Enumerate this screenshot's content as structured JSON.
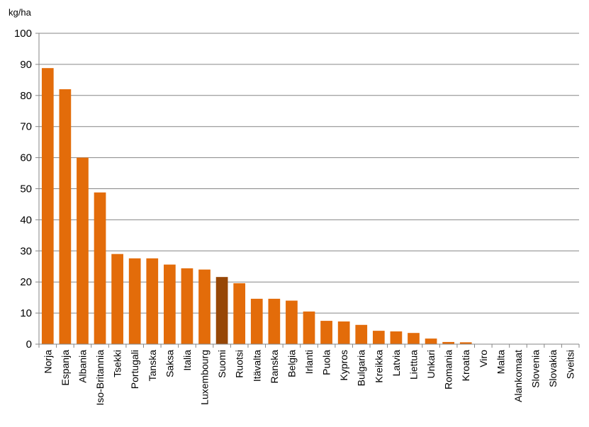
{
  "chart_data": {
    "type": "bar",
    "ylabel": "kg/ha",
    "ylim": [
      0,
      100
    ],
    "yticks": [
      0,
      10,
      20,
      30,
      40,
      50,
      60,
      70,
      80,
      90,
      100
    ],
    "grid": true,
    "categories": [
      "Norja",
      "Espanja",
      "Albania",
      "Iso-Britannia",
      "Tsekki",
      "Portugali",
      "Tanska",
      "Saksa",
      "Italia",
      "Luxembourg",
      "Suomi",
      "Ruotsi",
      "Itävalta",
      "Ranska",
      "Belgia",
      "Irlanti",
      "Puola",
      "Kypros",
      "Bulgaria",
      "Kreikka",
      "Latvia",
      "Liettua",
      "Unkari",
      "Romania",
      "Kroatia",
      "Viro",
      "Malta",
      "Alankomaat",
      "Slovenia",
      "Slovakia",
      "Sveitsi"
    ],
    "values": [
      88.8,
      82,
      60,
      48.8,
      29,
      27.6,
      27.6,
      25.6,
      24.4,
      24,
      21.6,
      19.6,
      14.6,
      14.6,
      14,
      10.5,
      7.5,
      7.3,
      6.2,
      4.3,
      4.1,
      3.6,
      1.8,
      0.7,
      0.6,
      0,
      0,
      0,
      0,
      0,
      0
    ],
    "highlight_category": "Suomi",
    "colors": {
      "bar": "#E36C0A",
      "highlight": "#974706",
      "grid": "#868686",
      "axis": "#868686"
    }
  }
}
